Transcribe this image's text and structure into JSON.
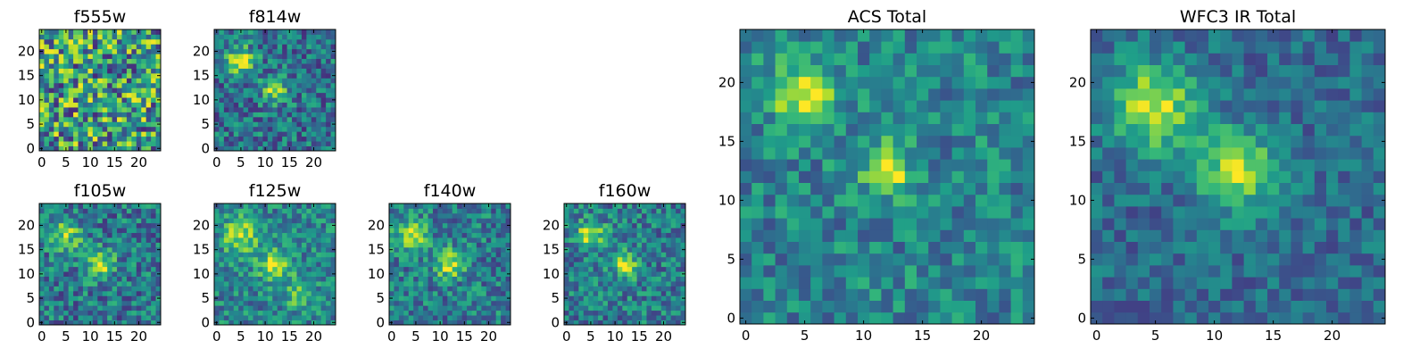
{
  "chart_data": [
    {
      "type": "heatmap",
      "title": "f555w",
      "pixels": 25,
      "xticks": [
        "0",
        "5",
        "10",
        "15",
        "20"
      ],
      "yticks": [
        "0",
        "5",
        "10",
        "15",
        "20"
      ],
      "xlim": [
        0,
        25
      ],
      "ylim": [
        0,
        25
      ],
      "colormap": "viridis",
      "blobs": [],
      "noise": 0.55,
      "base": 0.55,
      "seed": 11
    },
    {
      "type": "heatmap",
      "title": "f814w",
      "pixels": 25,
      "xticks": [
        "0",
        "5",
        "10",
        "15",
        "20"
      ],
      "yticks": [
        "0",
        "5",
        "10",
        "15",
        "20"
      ],
      "xlim": [
        0,
        25
      ],
      "ylim": [
        0,
        25
      ],
      "colormap": "viridis",
      "blobs": [
        {
          "x": 5,
          "y": 18,
          "amp": 0.55,
          "sigma": 2.0
        },
        {
          "x": 12,
          "y": 12,
          "amp": 0.5,
          "sigma": 1.8
        }
      ],
      "noise": 0.32,
      "base": 0.38,
      "seed": 23
    },
    {
      "type": "heatmap",
      "title": "f105w",
      "pixels": 25,
      "xticks": [
        "0",
        "5",
        "10",
        "15",
        "20"
      ],
      "yticks": [
        "0",
        "5",
        "10",
        "15",
        "20"
      ],
      "xlim": [
        0,
        25
      ],
      "ylim": [
        0,
        25
      ],
      "colormap": "viridis",
      "blobs": [
        {
          "x": 5,
          "y": 18,
          "amp": 0.4,
          "sigma": 2.4
        },
        {
          "x": 12,
          "y": 12,
          "amp": 0.5,
          "sigma": 2.0
        }
      ],
      "noise": 0.32,
      "base": 0.4,
      "seed": 37
    },
    {
      "type": "heatmap",
      "title": "f125w",
      "pixels": 25,
      "xticks": [
        "0",
        "5",
        "10",
        "15",
        "20"
      ],
      "yticks": [
        "0",
        "5",
        "10",
        "15",
        "20"
      ],
      "xlim": [
        0,
        25
      ],
      "ylim": [
        0,
        25
      ],
      "colormap": "viridis",
      "blobs": [
        {
          "x": 5,
          "y": 18,
          "amp": 0.45,
          "sigma": 2.5
        },
        {
          "x": 12,
          "y": 12,
          "amp": 0.45,
          "sigma": 2.3
        },
        {
          "x": 17,
          "y": 6,
          "amp": 0.3,
          "sigma": 2.0
        }
      ],
      "noise": 0.28,
      "base": 0.45,
      "seed": 41
    },
    {
      "type": "heatmap",
      "title": "f140w",
      "pixels": 25,
      "xticks": [
        "0",
        "5",
        "10",
        "15",
        "20"
      ],
      "yticks": [
        "0",
        "5",
        "10",
        "15",
        "20"
      ],
      "xlim": [
        0,
        25
      ],
      "ylim": [
        0,
        25
      ],
      "colormap": "viridis",
      "blobs": [
        {
          "x": 4,
          "y": 18,
          "amp": 0.5,
          "sigma": 2.2
        },
        {
          "x": 12,
          "y": 12,
          "amp": 0.5,
          "sigma": 2.0
        }
      ],
      "noise": 0.3,
      "base": 0.42,
      "seed": 53
    },
    {
      "type": "heatmap",
      "title": "f160w",
      "pixels": 25,
      "xticks": [
        "0",
        "5",
        "10",
        "15",
        "20"
      ],
      "yticks": [
        "0",
        "5",
        "10",
        "15",
        "20"
      ],
      "xlim": [
        0,
        25
      ],
      "ylim": [
        0,
        25
      ],
      "colormap": "viridis",
      "blobs": [
        {
          "x": 5,
          "y": 18,
          "amp": 0.5,
          "sigma": 2.0
        },
        {
          "x": 12,
          "y": 12,
          "amp": 0.5,
          "sigma": 1.8
        }
      ],
      "noise": 0.3,
      "base": 0.42,
      "seed": 67
    },
    {
      "type": "heatmap",
      "title": "ACS Total",
      "pixels": 25,
      "xticks": [
        "0",
        "5",
        "10",
        "15",
        "20"
      ],
      "yticks": [
        "0",
        "5",
        "10",
        "15",
        "20"
      ],
      "xlim": [
        0,
        25
      ],
      "ylim": [
        0,
        25
      ],
      "colormap": "viridis",
      "blobs": [
        {
          "x": 5,
          "y": 19,
          "amp": 0.45,
          "sigma": 2.0
        },
        {
          "x": 12,
          "y": 12.5,
          "amp": 0.5,
          "sigma": 1.5
        }
      ],
      "noise": 0.26,
      "base": 0.45,
      "seed": 79
    },
    {
      "type": "heatmap",
      "title": "WFC3 IR Total",
      "pixels": 25,
      "xticks": [
        "0",
        "5",
        "10",
        "15",
        "20"
      ],
      "yticks": [
        "0",
        "5",
        "10",
        "15",
        "20"
      ],
      "xlim": [
        0,
        25
      ],
      "ylim": [
        0,
        25
      ],
      "colormap": "viridis",
      "blobs": [
        {
          "x": 5,
          "y": 18,
          "amp": 0.55,
          "sigma": 2.6
        },
        {
          "x": 12,
          "y": 12.5,
          "amp": 0.55,
          "sigma": 2.3
        }
      ],
      "noise": 0.2,
      "base": 0.35,
      "seed": 97
    }
  ]
}
